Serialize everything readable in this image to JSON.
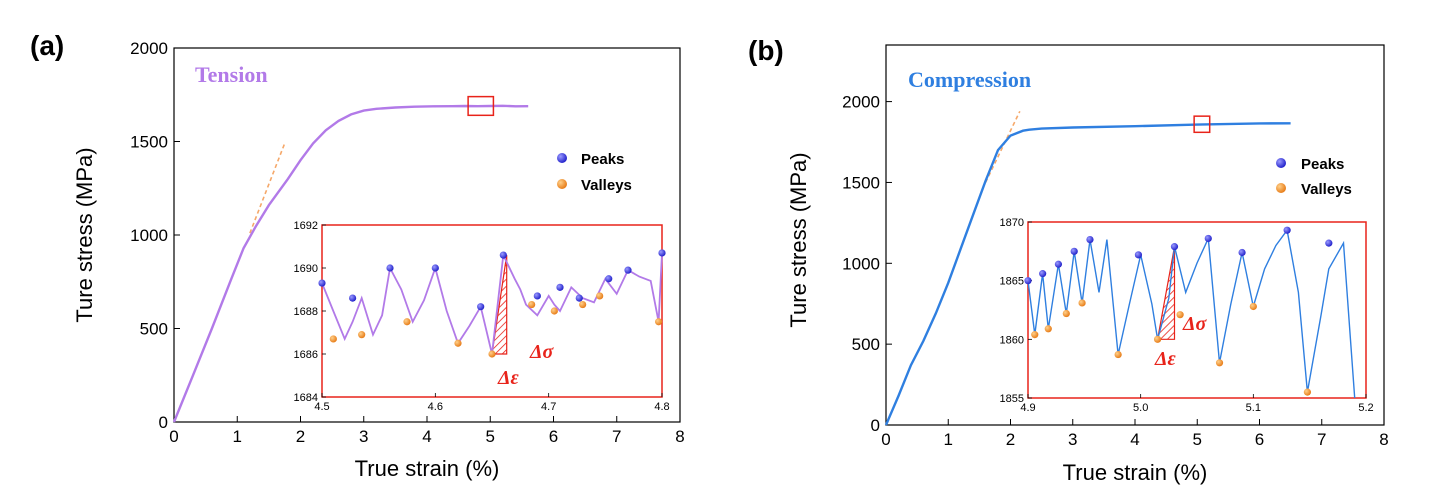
{
  "chart_data": [
    {
      "type": "line",
      "panel_label": "(a)",
      "annotation": "Tension",
      "xlabel": "True strain (%)",
      "ylabel": "Ture stress (MPa)",
      "xlim": [
        0,
        8
      ],
      "ylim": [
        0,
        2000
      ],
      "xticks": [
        "0",
        "1",
        "2",
        "3",
        "4",
        "5",
        "6",
        "7",
        "8"
      ],
      "yticks": [
        "0",
        "500",
        "1000",
        "1500",
        "2000"
      ],
      "line_color": "#b27ae8",
      "fit_color": "#f5a86a",
      "series": [
        {
          "x": [
            0,
            0.3,
            0.6,
            0.9,
            1.1,
            1.3,
            1.5,
            1.8,
            2.0,
            2.2,
            2.4,
            2.6,
            2.8,
            3.0,
            3.2,
            3.5,
            3.8,
            4.1,
            4.4,
            4.6,
            4.8,
            5.0,
            5.2,
            5.4,
            5.6
          ],
          "y": [
            0,
            250,
            500,
            760,
            930,
            1050,
            1160,
            1300,
            1400,
            1490,
            1560,
            1610,
            1645,
            1665,
            1675,
            1682,
            1686,
            1688,
            1689,
            1690,
            1689,
            1690,
            1691,
            1688,
            1689
          ]
        }
      ],
      "fit_line": {
        "x": [
          1.2,
          1.75
        ],
        "y": [
          1010,
          1490
        ]
      },
      "marker_box": {
        "x": [
          4.65,
          5.05
        ],
        "y": [
          1640,
          1740
        ]
      },
      "legend": {
        "entries": [
          "Peaks",
          "Valleys"
        ],
        "peak_color": "#2828d8",
        "valley_color": "#f08a1c",
        "placement": "right"
      },
      "inset": {
        "xlim": [
          4.5,
          4.8
        ],
        "ylim": [
          1684,
          1692
        ],
        "xticks": [
          "4.5",
          "4.6",
          "4.7",
          "4.8"
        ],
        "yticks": [
          "1684",
          "1686",
          "1688",
          "1690",
          "1692"
        ],
        "x": [
          4.5,
          4.51,
          4.52,
          4.527,
          4.535,
          4.545,
          4.553,
          4.56,
          4.57,
          4.58,
          4.59,
          4.6,
          4.61,
          4.62,
          4.63,
          4.64,
          4.65,
          4.66,
          4.67,
          4.675,
          4.68,
          4.69,
          4.7,
          4.705,
          4.71,
          4.72,
          4.73,
          4.74,
          4.75,
          4.76,
          4.77,
          4.78,
          4.79,
          4.797,
          4.8
        ],
        "y": [
          1689.3,
          1688.0,
          1686.7,
          1687.5,
          1688.6,
          1686.9,
          1687.8,
          1690.0,
          1689.0,
          1687.5,
          1688.5,
          1690.0,
          1688.0,
          1686.5,
          1687.3,
          1688.2,
          1686.0,
          1690.6,
          1689.5,
          1689.0,
          1688.3,
          1687.8,
          1688.7,
          1688.3,
          1688.0,
          1689.1,
          1688.6,
          1688.4,
          1689.5,
          1688.8,
          1689.9,
          1689.6,
          1689.4,
          1687.5,
          1690.7
        ],
        "peaks": {
          "x": [
            4.5,
            4.527,
            4.56,
            4.6,
            4.64,
            4.66,
            4.69,
            4.71,
            4.727,
            4.753,
            4.77,
            4.8
          ],
          "y": [
            1689.3,
            1688.6,
            1690.0,
            1690.0,
            1688.2,
            1690.6,
            1688.7,
            1689.1,
            1688.6,
            1689.5,
            1689.9,
            1690.7
          ]
        },
        "valleys": {
          "x": [
            4.51,
            4.535,
            4.575,
            4.62,
            4.65,
            4.685,
            4.705,
            4.73,
            4.745,
            4.797
          ],
          "y": [
            1686.7,
            1686.9,
            1687.5,
            1686.5,
            1686.0,
            1688.3,
            1688.0,
            1688.3,
            1688.7,
            1687.5
          ]
        },
        "hatch_triangle": {
          "x": [
            4.65,
            4.663,
            4.663
          ],
          "y": [
            1686.0,
            1686.0,
            1690.6
          ]
        },
        "delta_sigma": "Δσ",
        "delta_epsilon": "Δε"
      }
    },
    {
      "type": "line",
      "panel_label": "(b)",
      "annotation": "Compression",
      "xlabel": "True strain (%)",
      "ylabel": "Ture stress (MPa)",
      "xlim": [
        0,
        8
      ],
      "ylim": [
        0,
        2350
      ],
      "xticks": [
        "0",
        "1",
        "2",
        "3",
        "4",
        "5",
        "6",
        "7",
        "8"
      ],
      "yticks": [
        "0",
        "500",
        "1000",
        "1500",
        "2000"
      ],
      "line_color": "#2f7fe0",
      "fit_color": "#f5a86a",
      "series": [
        {
          "x": [
            0,
            0.2,
            0.4,
            0.6,
            0.8,
            1.0,
            1.2,
            1.4,
            1.6,
            1.8,
            2.0,
            2.2,
            2.3,
            2.5,
            3.0,
            4.0,
            5.0,
            6.0,
            6.5
          ],
          "y": [
            0,
            180,
            370,
            520,
            690,
            880,
            1090,
            1300,
            1510,
            1700,
            1790,
            1820,
            1826,
            1833,
            1840,
            1848,
            1858,
            1865,
            1866
          ]
        }
      ],
      "fit_line": {
        "x": [
          1.6,
          2.15
        ],
        "y": [
          1500,
          1940
        ]
      },
      "marker_box": {
        "x": [
          4.95,
          5.2
        ],
        "y": [
          1810,
          1910
        ]
      },
      "legend": {
        "entries": [
          "Peaks",
          "Valleys"
        ],
        "peak_color": "#2828d8",
        "valley_color": "#f08a1c",
        "placement": "right"
      },
      "inset": {
        "xlim": [
          4.9,
          5.2
        ],
        "ylim": [
          1855,
          1870
        ],
        "xticks": [
          "4.9",
          "5.0",
          "5.1",
          "5.2"
        ],
        "yticks": [
          "1855",
          "1860",
          "1865",
          "1870"
        ],
        "x": [
          4.9,
          4.906,
          4.913,
          4.918,
          4.927,
          4.934,
          4.941,
          4.948,
          4.955,
          4.963,
          4.97,
          4.98,
          4.99,
          5.0,
          5.01,
          5.015,
          5.025,
          5.03,
          5.04,
          5.05,
          5.06,
          5.07,
          5.08,
          5.09,
          5.1,
          5.11,
          5.12,
          5.13,
          5.14,
          5.148,
          5.16,
          5.167,
          5.18,
          5.19
        ],
        "y": [
          1865.0,
          1860.4,
          1865.6,
          1860.9,
          1866.4,
          1862.2,
          1867.5,
          1863.1,
          1868.5,
          1864.0,
          1868.5,
          1858.7,
          1863.0,
          1867.2,
          1863.0,
          1860.0,
          1863.5,
          1867.9,
          1864.0,
          1866.5,
          1868.6,
          1858.0,
          1863.0,
          1867.4,
          1862.8,
          1866.0,
          1868.0,
          1869.3,
          1864.0,
          1855.5,
          1862.0,
          1866.0,
          1868.2,
          1855.0
        ],
        "peaks": {
          "x": [
            4.9,
            4.913,
            4.927,
            4.941,
            4.955,
            4.998,
            5.03,
            5.06,
            5.09,
            5.13,
            5.167
          ],
          "y": [
            1865.0,
            1865.6,
            1866.4,
            1867.5,
            1868.5,
            1867.2,
            1867.9,
            1868.6,
            1867.4,
            1869.3,
            1868.2
          ]
        },
        "valleys": {
          "x": [
            4.906,
            4.918,
            4.934,
            4.948,
            4.98,
            5.015,
            5.035,
            5.07,
            5.1,
            5.148
          ],
          "y": [
            1860.4,
            1860.9,
            1862.2,
            1863.1,
            1858.7,
            1860.0,
            1862.1,
            1858.0,
            1862.8,
            1855.5
          ]
        },
        "hatch_triangle": {
          "x": [
            5.015,
            5.03,
            5.03
          ],
          "y": [
            1860.0,
            1860.0,
            1867.9
          ]
        },
        "delta_sigma": "Δσ",
        "delta_epsilon": "Δε"
      }
    }
  ]
}
